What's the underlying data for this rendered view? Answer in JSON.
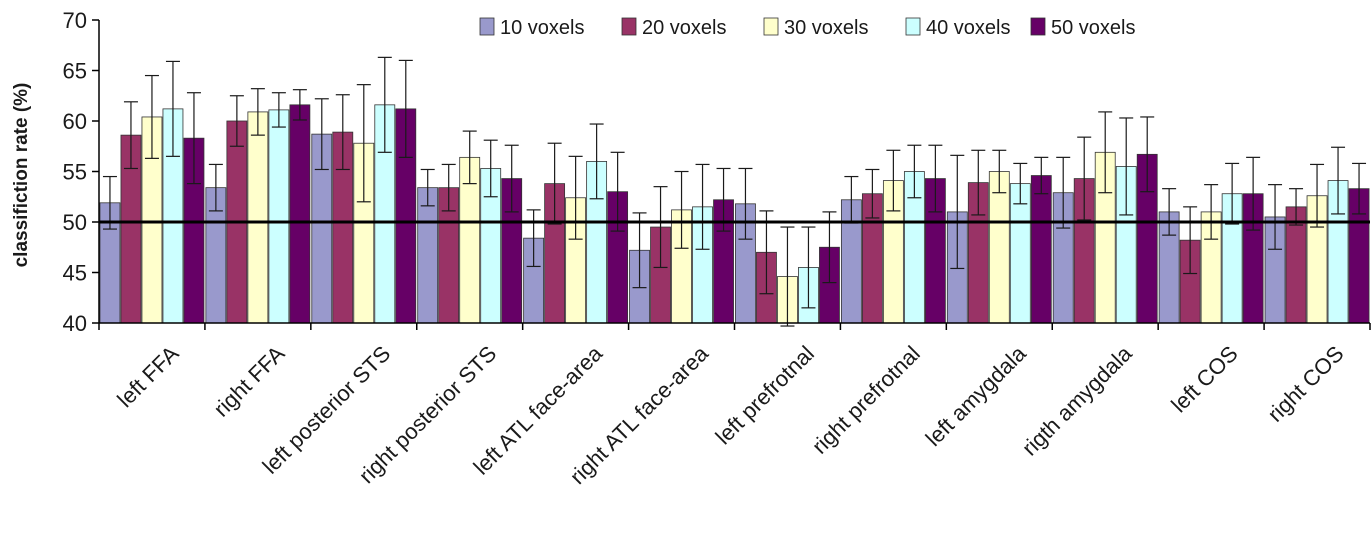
{
  "chart_data": {
    "type": "bar",
    "ylabel": "classifiction rate (%)",
    "ylim": [
      40,
      70
    ],
    "yticks": [
      40,
      45,
      50,
      55,
      60,
      65,
      70
    ],
    "reference_line": 50,
    "legend_position": "top-right",
    "categories": [
      "left FFA",
      "right FFA",
      "left posterior STS",
      "right posterior STS",
      "left ATL face-area",
      "right ATL face-area",
      "left prefrotnal",
      "right prefrotnal",
      "left amygdala",
      "rigth amygdala",
      "left COS",
      "right COS"
    ],
    "series": [
      {
        "name": "10 voxels",
        "color": "#9999cc",
        "values": [
          51.9,
          53.4,
          58.7,
          53.4,
          48.4,
          47.2,
          51.8,
          52.2,
          51.0,
          52.9,
          51.0,
          50.5
        ],
        "errors": [
          2.6,
          2.3,
          3.5,
          1.8,
          2.8,
          3.7,
          3.5,
          2.3,
          5.6,
          3.5,
          2.3,
          3.2
        ]
      },
      {
        "name": "20 voxels",
        "color": "#993366",
        "values": [
          58.6,
          60.0,
          58.9,
          53.4,
          53.8,
          49.5,
          47.0,
          52.8,
          53.9,
          54.3,
          48.2,
          51.5
        ],
        "errors": [
          3.3,
          2.5,
          3.7,
          2.3,
          4.0,
          4.0,
          4.1,
          2.4,
          3.2,
          4.1,
          3.3,
          1.8
        ]
      },
      {
        "name": "30 voxels",
        "color": "#ffffcc",
        "values": [
          60.4,
          60.9,
          57.8,
          56.4,
          52.4,
          51.2,
          44.6,
          54.1,
          55.0,
          56.9,
          51.0,
          52.6
        ],
        "errors": [
          4.1,
          2.3,
          5.8,
          2.6,
          4.1,
          3.8,
          4.9,
          3.0,
          2.1,
          4.0,
          2.7,
          3.1
        ]
      },
      {
        "name": "40 voxels",
        "color": "#ccffff",
        "values": [
          61.2,
          61.1,
          61.6,
          55.3,
          56.0,
          51.5,
          45.5,
          55.0,
          53.8,
          55.5,
          52.8,
          54.1
        ],
        "errors": [
          4.7,
          1.7,
          4.7,
          2.8,
          3.7,
          4.2,
          4.0,
          2.6,
          2.0,
          4.8,
          3.0,
          3.3
        ]
      },
      {
        "name": "50 voxels",
        "color": "#660066",
        "values": [
          58.3,
          61.6,
          61.2,
          54.3,
          53.0,
          52.2,
          47.5,
          54.3,
          54.6,
          56.7,
          52.8,
          53.3
        ],
        "errors": [
          4.5,
          1.5,
          4.8,
          3.3,
          3.9,
          3.1,
          3.5,
          3.3,
          1.8,
          3.7,
          3.6,
          2.5
        ]
      }
    ]
  }
}
